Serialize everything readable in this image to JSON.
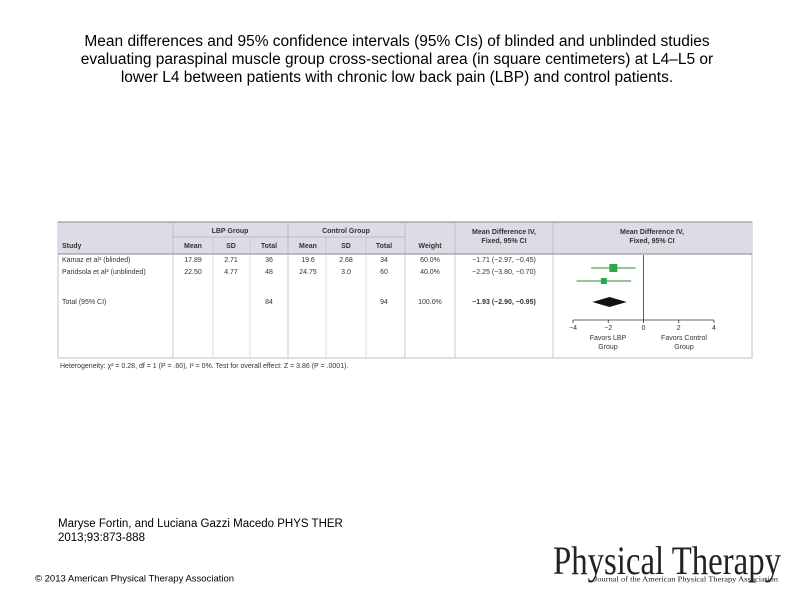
{
  "title": [
    "Mean differences and 95% confidence intervals (95% CIs) of blinded and unblinded studies",
    "evaluating paraspinal muscle group cross-sectional area (in square centimeters) at L4–L5 or",
    "lower L4 between patients with chronic low back pain (LBP) and control patients."
  ],
  "table": {
    "group_headers": [
      "LBP Group",
      "Control Group",
      "Mean Difference IV, Fixed, 95% CI",
      "Mean Difference IV, Fixed, 95% CI"
    ],
    "columns": [
      "Study",
      "Mean",
      "SD",
      "Total",
      "Mean",
      "SD",
      "Total",
      "Weight"
    ],
    "rows": [
      [
        "Kamaz et al¹ (blinded)",
        "17.89",
        "2.71",
        "36",
        "19.6",
        "2.68",
        "34",
        "60.0%",
        "−1.71 (−2.97, −0.45)"
      ],
      [
        "Paridsola et al² (unblinded)",
        "22.50",
        "4.77",
        "48",
        "24.75",
        "3.0",
        "60",
        "40.0%",
        "−2.25 (−3.80, −0.70)"
      ]
    ],
    "total": {
      "label": "Total (95% CI)",
      "lbp_total": "84",
      "control_total": "94",
      "weight": "100.0%",
      "ci": "−1.93 (−2.90, −0.95)"
    },
    "heterogeneity": "Heterogeneity: χ² = 0.28, df = 1 (P = .60), I² = 0%. Test for overall effect: Z = 3.86 (P = .0001)."
  },
  "forest": {
    "estimates": [
      -1.71,
      -2.25
    ],
    "ci_low": [
      -2.97,
      -3.8
    ],
    "ci_high": [
      -0.45,
      -0.7
    ],
    "total": {
      "estimate": -1.93,
      "ci_low": -2.9,
      "ci_high": -0.95
    },
    "xlim": [
      -4,
      4
    ],
    "xticks": [
      {
        "value": -4,
        "label": "−4"
      },
      {
        "value": -2,
        "label": "−2"
      },
      0,
      2,
      4
    ],
    "left_label": [
      "Favors LBP",
      "Group"
    ],
    "right_label": [
      "Favors Control",
      "Group"
    ]
  },
  "citation": [
    "Maryse Fortin, and Luciana Gazzi Macedo PHYS THER",
    "2013;93:873-888"
  ],
  "copyright": "© 2013 American Physical Therapy Association",
  "logo": {
    "name": "Physical Therapy",
    "subtitle": "Journal of the American Physical Therapy Association"
  }
}
